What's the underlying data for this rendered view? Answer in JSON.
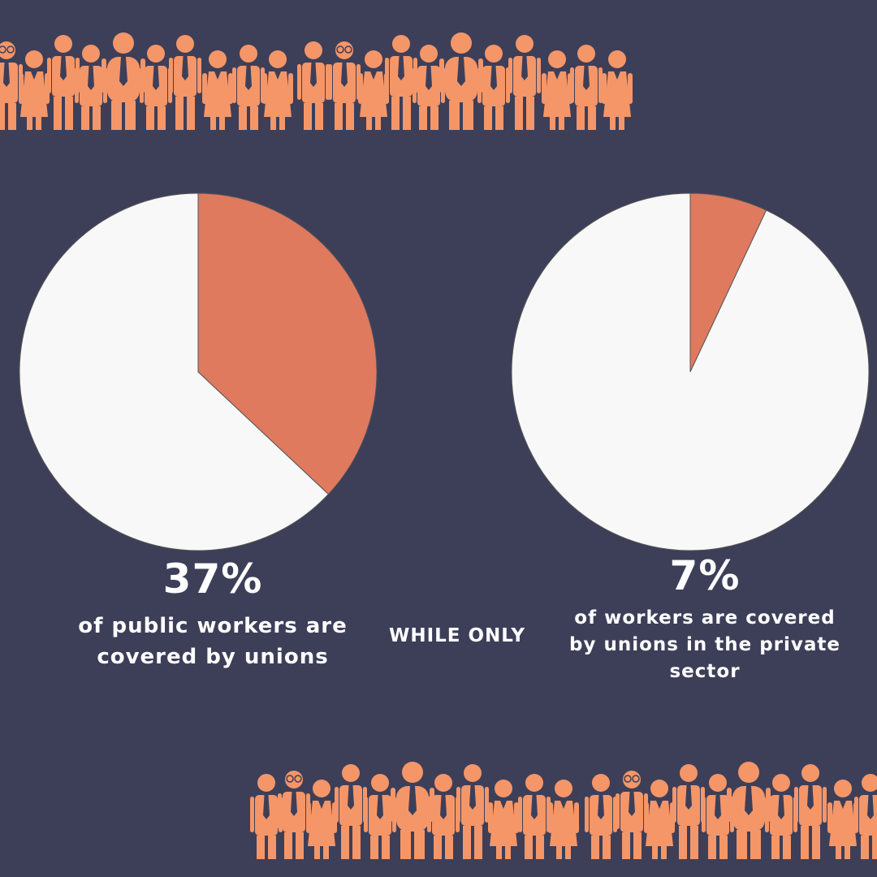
{
  "colors": {
    "background": "#3d3f59",
    "accent": "#df7a5f",
    "crowd": "#f59668",
    "pie_rest": "#f8f8f8"
  },
  "icons": [
    "worker-figure-icon"
  ],
  "chart_data": [
    {
      "type": "pie",
      "values": [
        37,
        63
      ],
      "colors": [
        "#df7a5f",
        "#f8f8f8"
      ],
      "data_label": "37%",
      "caption": "of public workers are covered by unions"
    },
    {
      "type": "pie",
      "values": [
        7,
        93
      ],
      "colors": [
        "#df7a5f",
        "#f8f8f8"
      ],
      "data_label": "7%",
      "caption": "of workers are covered by unions in the private sector"
    }
  ],
  "connector": "WHILE ONLY"
}
